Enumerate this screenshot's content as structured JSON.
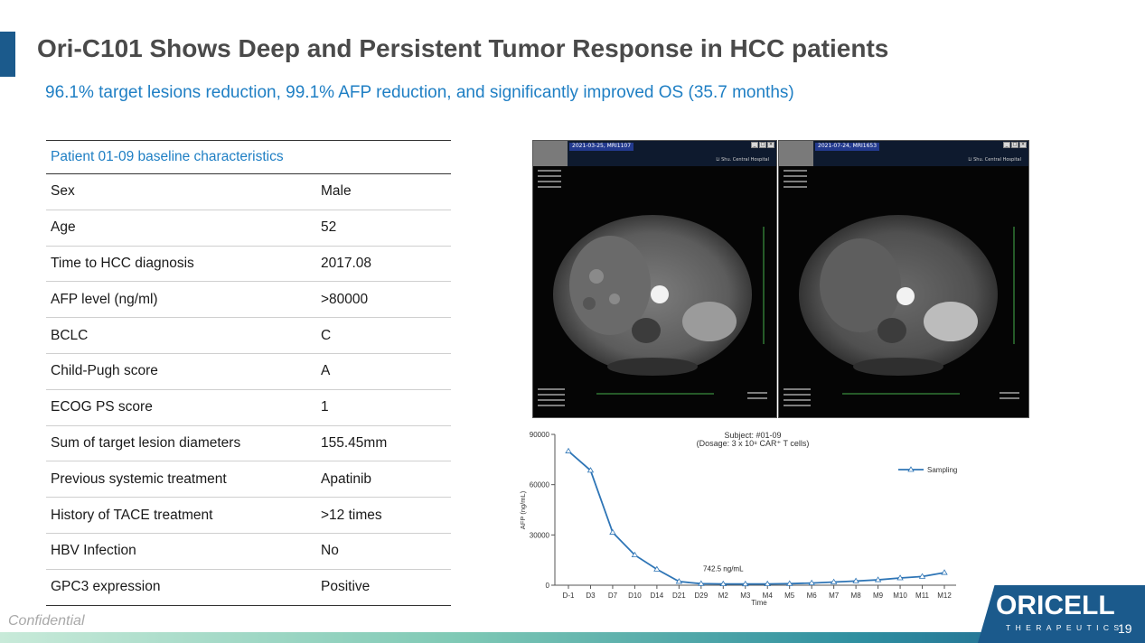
{
  "header": {
    "title": "Ori-C101 Shows Deep and Persistent Tumor Response in HCC patients",
    "subtitle": "96.1% target lesions reduction, 99.1% AFP reduction, and significantly improved OS (35.7 months)"
  },
  "table": {
    "heading": "Patient 01-09 baseline characteristics",
    "rows": [
      {
        "label": "Sex",
        "value": "Male"
      },
      {
        "label": "Age",
        "value": "52"
      },
      {
        "label": "Time to HCC diagnosis",
        "value": "2017.08"
      },
      {
        "label": "AFP level (ng/ml)",
        "value": ">80000"
      },
      {
        "label": "BCLC",
        "value": "C"
      },
      {
        "label": "Child-Pugh score",
        "value": "A"
      },
      {
        "label": "ECOG PS score",
        "value": "1"
      },
      {
        "label": "Sum of target lesion diameters",
        "value": "155.45mm"
      },
      {
        "label": "Previous systemic treatment",
        "value": "Apatinib"
      },
      {
        "label": "History of TACE treatment",
        "value": ">12 times"
      },
      {
        "label": "HBV Infection",
        "value": "No"
      },
      {
        "label": "GPC3 expression",
        "value": "Positive"
      }
    ]
  },
  "scans": {
    "left": {
      "id": "2021-03-25, MRI1107"
    },
    "right": {
      "id": "2021-07-24, MRI1653"
    },
    "hospital": "Li Shu. Central Hospital",
    "window_buttons": [
      "_",
      "□",
      "×"
    ]
  },
  "chart_data": {
    "type": "line",
    "title": "Subject: #01-09",
    "subtitle": "(Dosage: 3 x 10⁸ CAR⁺ T cells)",
    "xlabel": "Time",
    "ylabel": "AFP (ng/mL)",
    "categories": [
      "D-1",
      "D3",
      "D7",
      "D10",
      "D14",
      "D21",
      "D29",
      "M2",
      "M3",
      "M4",
      "M5",
      "M6",
      "M7",
      "M8",
      "M9",
      "M10",
      "M11",
      "M12"
    ],
    "series": [
      {
        "name": "Sampling",
        "values": [
          80000,
          68500,
          31500,
          18000,
          9500,
          2200,
          900,
          742.5,
          700,
          750,
          900,
          1300,
          1900,
          2500,
          3200,
          4300,
          5200,
          7500
        ]
      }
    ],
    "yticks": [
      0,
      30000,
      60000,
      90000
    ],
    "ylim": [
      0,
      90000
    ],
    "annotation": "742.5 ng/mL",
    "legend_position": "top-right",
    "color": "#2e75b6"
  },
  "footer": {
    "confidential": "Confidential",
    "logo_main": "ORICELL",
    "logo_sub": "THERAPEUTICS",
    "page_number": "19"
  }
}
